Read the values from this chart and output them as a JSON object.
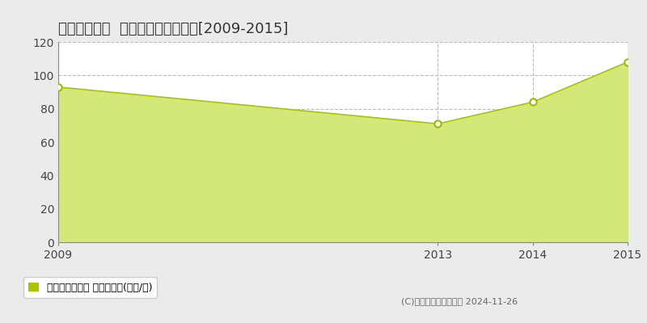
{
  "title": "三島市南田町  マンション価格推移[2009-2015]",
  "x_values": [
    2009,
    2013,
    2014,
    2015
  ],
  "y_values": [
    93,
    71,
    84,
    108
  ],
  "xlim": [
    2009,
    2015
  ],
  "ylim": [
    0,
    120
  ],
  "yticks": [
    0,
    20,
    40,
    60,
    80,
    100,
    120
  ],
  "xticks": [
    2009,
    2013,
    2014,
    2015
  ],
  "line_color": "#aac400",
  "fill_color": "#d4e87a",
  "marker_color": "#ffffff",
  "marker_edge_color": "#99bb00",
  "grid_color": "#bbbbbb",
  "background_color": "#ebebeb",
  "plot_bg_color": "#ffffff",
  "legend_label": "マンション価格 平均坪単価(万円/坪)",
  "legend_marker_color": "#aac400",
  "copyright_text": "(C)土地価格ドットコム 2024-11-26",
  "title_fontsize": 13,
  "axis_fontsize": 10,
  "legend_fontsize": 9
}
